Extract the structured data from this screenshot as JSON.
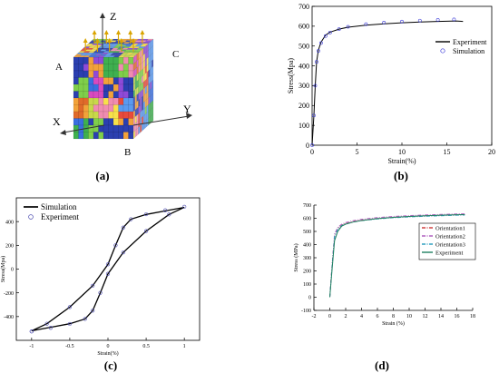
{
  "panels": {
    "a": {
      "caption": "(a)",
      "axis_labels": {
        "z": "Z",
        "y": "Y",
        "x": "X"
      },
      "corner_labels": {
        "a": "A",
        "b": "B",
        "c": "C"
      }
    },
    "b": {
      "caption": "(b)"
    },
    "c": {
      "caption": "(c)"
    },
    "d": {
      "caption": "(d)"
    }
  },
  "chart_data": [
    {
      "panel": "b",
      "type": "line",
      "xlabel": "Strain(%)",
      "ylabel": "Stress(Mpa)",
      "xlim": [
        0,
        20
      ],
      "ylim": [
        0,
        700
      ],
      "xticks": [
        0,
        5,
        10,
        15,
        20
      ],
      "yticks": [
        0,
        100,
        200,
        300,
        400,
        500,
        600,
        700
      ],
      "grid": false,
      "legend": "right",
      "series": [
        {
          "name": "Experiment",
          "style": "line",
          "color": "#000000",
          "x": [
            0,
            0.2,
            0.35,
            0.5,
            0.7,
            1,
            1.5,
            2,
            3,
            4,
            6,
            8,
            10,
            12,
            14,
            16,
            16.8
          ],
          "y": [
            0,
            150,
            300,
            420,
            480,
            520,
            555,
            570,
            585,
            595,
            605,
            612,
            617,
            621,
            624,
            626,
            624
          ]
        },
        {
          "name": "Simulation",
          "style": "markers",
          "color": "#3b3bd8",
          "x": [
            0,
            0.2,
            0.35,
            0.5,
            0.7,
            1,
            1.5,
            2,
            3,
            4,
            6,
            8,
            10,
            12,
            14,
            15.8
          ],
          "y": [
            0,
            150,
            300,
            420,
            475,
            515,
            550,
            568,
            585,
            597,
            610,
            618,
            623,
            628,
            632,
            634
          ]
        }
      ]
    },
    {
      "panel": "c",
      "type": "line",
      "xlabel": "Strain(%)",
      "ylabel": "Stress(Mpa)",
      "xlim": [
        -1.2,
        1.2
      ],
      "ylim": [
        -600,
        600
      ],
      "xticks": [
        -1,
        -0.5,
        0,
        0.5,
        1
      ],
      "xtick_labels": [
        "-1",
        "-0.5",
        "0",
        "0.5",
        "1"
      ],
      "yticks": [
        -400,
        -200,
        0,
        200,
        400
      ],
      "grid": false,
      "legend": "top-left",
      "series": [
        {
          "name": "Simulation",
          "style": "line",
          "color": "#000000",
          "x": [
            -1,
            -0.75,
            -0.5,
            -0.3,
            -0.2,
            -0.1,
            0,
            0.2,
            0.5,
            0.8,
            1,
            0.75,
            0.5,
            0.3,
            0.2,
            0.1,
            0,
            -0.2,
            -0.5,
            -0.8,
            -1
          ],
          "y": [
            -520,
            -490,
            -460,
            -420,
            -350,
            -200,
            -40,
            140,
            320,
            460,
            520,
            490,
            460,
            420,
            350,
            200,
            40,
            -140,
            -320,
            -460,
            -520
          ]
        },
        {
          "name": "Experiment",
          "style": "markers",
          "color": "#4a4ab0",
          "x": [
            -1,
            -0.75,
            -0.5,
            -0.3,
            -0.2,
            -0.1,
            0,
            0.2,
            0.5,
            0.8,
            1,
            0.75,
            0.5,
            0.3,
            0.2,
            0.1,
            0,
            -0.2,
            -0.5,
            -0.8,
            -1
          ],
          "y": [
            -525,
            -495,
            -462,
            -420,
            -350,
            -200,
            -40,
            140,
            320,
            460,
            525,
            495,
            462,
            420,
            350,
            200,
            40,
            -140,
            -320,
            -460,
            -525
          ]
        }
      ]
    },
    {
      "panel": "d",
      "type": "line",
      "xlabel": "Strain (%)",
      "ylabel": "Stress (MPa)",
      "xlim": [
        -2,
        18
      ],
      "ylim": [
        -100,
        700
      ],
      "xticks": [
        -2,
        0,
        2,
        4,
        6,
        8,
        10,
        12,
        14,
        16,
        18
      ],
      "yticks": [
        -100,
        0,
        100,
        200,
        300,
        400,
        500,
        600,
        700
      ],
      "grid": false,
      "legend": "right",
      "series": [
        {
          "name": "Orientation1",
          "style": "dashdot",
          "color": "#d04040",
          "x": [
            0,
            0.3,
            0.6,
            1,
            1.5,
            2,
            3,
            4,
            6,
            8,
            10,
            12,
            14,
            16,
            17
          ],
          "y": [
            0,
            250,
            470,
            520,
            548,
            560,
            575,
            585,
            598,
            607,
            613,
            618,
            622,
            626,
            627
          ]
        },
        {
          "name": "Orientation2",
          "style": "dashdot",
          "color": "#b060c0",
          "x": [
            0,
            0.3,
            0.6,
            1,
            1.5,
            2,
            3,
            4,
            6,
            8,
            10,
            12,
            14,
            16,
            17
          ],
          "y": [
            0,
            250,
            480,
            530,
            555,
            567,
            582,
            592,
            605,
            614,
            620,
            625,
            629,
            633,
            634
          ]
        },
        {
          "name": "Orientation3",
          "style": "dashdot",
          "color": "#30a0c0",
          "x": [
            0,
            0.3,
            0.6,
            1,
            1.5,
            2,
            3,
            4,
            6,
            8,
            10,
            12,
            14,
            16,
            17
          ],
          "y": [
            0,
            240,
            460,
            515,
            545,
            557,
            572,
            582,
            595,
            604,
            610,
            615,
            619,
            623,
            624
          ]
        },
        {
          "name": "Experiment",
          "style": "line",
          "color": "#208060",
          "x": [
            0,
            0.3,
            0.6,
            1,
            1.5,
            2,
            3,
            4,
            6,
            8,
            10,
            12,
            14,
            16,
            17
          ],
          "y": [
            0,
            220,
            430,
            500,
            540,
            555,
            572,
            583,
            597,
            607,
            614,
            619,
            623,
            627,
            628
          ]
        }
      ]
    }
  ]
}
